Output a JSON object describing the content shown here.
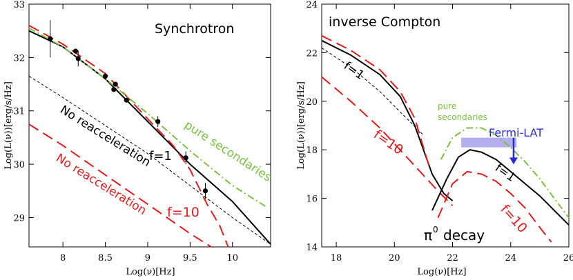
{
  "chart_data": [
    {
      "type": "line",
      "title": "Synchrotron",
      "xlabel": "Log(ν)[Hz]",
      "ylabel": "Log(L(ν))[erg/s/Hz]",
      "xlim": [
        7.6,
        10.45
      ],
      "ylim": [
        28.45,
        33
      ],
      "xticks": [
        8,
        8.5,
        9,
        9.5,
        10
      ],
      "xtick_labels": [
        "8",
        "8.5",
        "9",
        "9.5",
        "10"
      ],
      "yticks": [
        29,
        30,
        31,
        32,
        33
      ],
      "ytick_labels": [
        "29",
        "30",
        "31",
        "32",
        "33"
      ],
      "series": [
        {
          "name": "f=1",
          "color": "#000000",
          "style": "solid",
          "x": [
            7.6,
            8.0,
            8.5,
            9.0,
            9.5,
            10.0,
            10.45
          ],
          "y": [
            32.5,
            32.2,
            31.6,
            30.8,
            30.0,
            29.3,
            28.5
          ]
        },
        {
          "name": "f=10",
          "color": "#e41a1c",
          "style": "long-dash",
          "x": [
            7.6,
            8.0,
            8.5,
            9.0,
            9.3,
            9.5,
            9.7,
            9.85,
            9.95
          ],
          "y": [
            32.6,
            32.25,
            31.7,
            30.85,
            30.35,
            29.9,
            29.25,
            28.85,
            28.45
          ]
        },
        {
          "name": "pure secondaries",
          "color": "#7ac143",
          "style": "dash-dot",
          "x": [
            7.6,
            8.0,
            8.5,
            9.0,
            9.5,
            10.0,
            10.4
          ],
          "y": [
            32.55,
            32.2,
            31.6,
            30.95,
            30.25,
            29.6,
            29.2
          ]
        },
        {
          "name": "No reacceleration (f=1)",
          "color": "#000000",
          "style": "short-dash",
          "x": [
            7.6,
            8.0,
            9.0,
            10.0,
            10.45
          ],
          "y": [
            31.65,
            31.25,
            30.2,
            29.0,
            28.5
          ]
        },
        {
          "name": "No reacceleration (f=10)",
          "color": "#e41a1c",
          "style": "long-dash",
          "x": [
            7.6,
            8.0,
            8.5,
            9.0,
            9.5,
            9.75
          ],
          "y": [
            30.75,
            30.35,
            29.8,
            29.25,
            28.7,
            28.45
          ]
        }
      ],
      "points": [
        {
          "x": 7.85,
          "y": 32.35,
          "yerr": 0.35
        },
        {
          "x": 8.15,
          "y": 32.12,
          "yerr": 0
        },
        {
          "x": 8.18,
          "y": 31.98,
          "yerr": 0.15
        },
        {
          "x": 8.5,
          "y": 31.65,
          "yerr": 0.06
        },
        {
          "x": 8.6,
          "y": 31.4,
          "yerr": 0
        },
        {
          "x": 8.62,
          "y": 31.5,
          "yerr": 0
        },
        {
          "x": 8.75,
          "y": 31.2,
          "yerr": 0
        },
        {
          "x": 9.12,
          "y": 30.8,
          "yerr": 0.1
        },
        {
          "x": 9.45,
          "y": 30.12,
          "yerr": 0.12
        },
        {
          "x": 9.68,
          "y": 29.5,
          "yerr": 0.15
        }
      ],
      "annotations": [
        "No reacceleration",
        "No reacceleration",
        "f=1",
        "f=10",
        "pure secondaries"
      ]
    },
    {
      "type": "line",
      "title": "inverse Compton",
      "xlabel": "Log(ν)[Hz]",
      "ylabel": "Log(L(ν))[erg/s/Hz]",
      "xlim": [
        17.5,
        26
      ],
      "ylim": [
        14,
        24
      ],
      "xticks": [
        18,
        20,
        22,
        24,
        26
      ],
      "xtick_labels": [
        "18",
        "20",
        "22",
        "24",
        "26"
      ],
      "yticks": [
        14,
        16,
        18,
        20,
        22,
        24
      ],
      "ytick_labels": [
        "14",
        "16",
        "18",
        "20",
        "22",
        "24"
      ],
      "series": [
        {
          "name": "IC f=1",
          "color": "#000000",
          "style": "solid",
          "x": [
            17.5,
            18.5,
            19.5,
            20.2,
            20.7,
            21.0,
            21.3,
            21.7,
            22.0
          ],
          "y": [
            22.5,
            21.9,
            21.1,
            20.2,
            19.0,
            18.0,
            17.0,
            16.2,
            15.9
          ]
        },
        {
          "name": "IC f=1 no reacceleration",
          "color": "#000000",
          "style": "short-dash",
          "x": [
            17.5,
            18.5,
            19.5,
            20.5,
            21.0
          ],
          "y": [
            22.2,
            21.4,
            20.4,
            19.2,
            18.6
          ]
        },
        {
          "name": "IC f=10",
          "color": "#e41a1c",
          "style": "long-dash",
          "x": [
            17.5,
            18.5,
            19.5,
            20.2,
            20.7,
            21.0,
            21.2
          ],
          "y": [
            22.7,
            22.1,
            21.3,
            20.4,
            19.3,
            18.1,
            17.3
          ]
        },
        {
          "name": "IC f=10 no reacceleration",
          "color": "#e41a1c",
          "style": "long-dash",
          "x": [
            17.5,
            18.5,
            19.5,
            20.5,
            21.5,
            22.0
          ],
          "y": [
            21.0,
            20.0,
            18.9,
            17.6,
            16.3,
            15.7
          ]
        },
        {
          "name": "π0 decay f=1",
          "color": "#000000",
          "style": "solid",
          "x": [
            21.3,
            21.8,
            22.2,
            22.6,
            23.0,
            23.5,
            24.0,
            24.5,
            25.0,
            25.5,
            26.0
          ],
          "y": [
            15.5,
            16.8,
            17.7,
            18.0,
            17.9,
            17.6,
            17.1,
            16.6,
            16.1,
            15.5,
            14.9
          ]
        },
        {
          "name": "π0 decay f=10",
          "color": "#e41a1c",
          "style": "long-dash",
          "x": [
            21.5,
            22.0,
            22.5,
            23.0,
            23.5,
            24.0,
            24.5,
            25.0,
            25.4
          ],
          "y": [
            15.2,
            16.6,
            17.1,
            17.0,
            16.7,
            16.2,
            15.6,
            14.8,
            14.2
          ]
        },
        {
          "name": "pure secondaries",
          "color": "#7ac143",
          "style": "dash-dot",
          "x": [
            21.6,
            22.0,
            22.5,
            23.0,
            23.5,
            24.0,
            24.5,
            25.0,
            25.5,
            26.0
          ],
          "y": [
            17.6,
            18.5,
            18.9,
            18.9,
            18.6,
            18.1,
            17.5,
            16.8,
            16.0,
            15.2
          ]
        }
      ],
      "fermi_band": {
        "x": [
          22.3,
          24.2
        ],
        "y": [
          18.1,
          18.5
        ]
      },
      "fermi_arrow": {
        "x": 24.1,
        "y_from": 18.5,
        "y_to": 17.4
      },
      "annotations": [
        "f=1",
        "f=10",
        "pure",
        "secondaries",
        "Fermi-LAT",
        "f=1",
        "f=10",
        "π",
        "0",
        "decay"
      ]
    }
  ],
  "left": {
    "title": "Synchrotron",
    "xlabel": "Log(ν)[Hz]",
    "ylabel": "Log(L(ν))[erg/s/Hz]",
    "label_noreacc_black": "No reacceleration",
    "label_noreacc_red": "No reacceleration",
    "label_f1": "f=1",
    "label_f10": "f=10",
    "label_pure": "pure secondaries"
  },
  "right": {
    "title": "inverse Compton",
    "xlabel": "Log(ν)[Hz]",
    "ylabel": "Log(L(ν))[erg/s/Hz]",
    "label_f1_left": "f=1",
    "label_f10_left": "f=10",
    "label_pure_1": "pure",
    "label_pure_2": "secondaries",
    "label_fermi": "Fermi-LAT",
    "label_f1_right": "f=1",
    "label_f10_right": "f=10",
    "label_pi": "π",
    "label_pi_sup": "0",
    "label_decay": "decay"
  },
  "colors": {
    "black": "#000000",
    "red": "#e41a1c",
    "green": "#7ac143",
    "blue": "#2a2ad0",
    "band": "#b4b0f0"
  }
}
